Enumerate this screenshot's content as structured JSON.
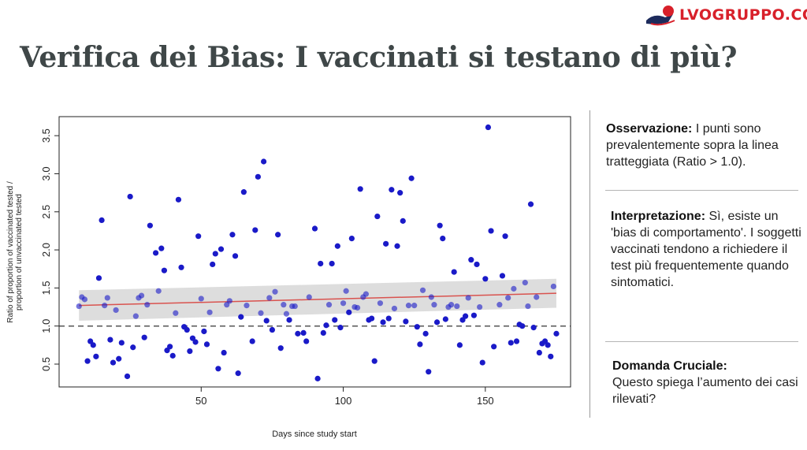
{
  "brand": {
    "logo_text": "LVOGRUPPO.COM",
    "logo_color": "#d8202a"
  },
  "slide": {
    "title": "Verifica dei Bias: I vaccinati si testano di più?"
  },
  "notes": [
    {
      "heading": "Osservazione:",
      "text": " I punti sono prevalentemente sopra la linea tratteggiata (Ratio > 1.0)."
    },
    {
      "heading": "Interpretazione:",
      "text": " Sì, esiste un 'bias di comportamento'. I soggetti vaccinati tendono a richiedere il test più frequentemente quando sintomatici."
    },
    {
      "heading": "Domanda Cruciale:",
      "text": " Questo spiega l’aumento dei casi rilevati?"
    }
  ],
  "chart_data": {
    "type": "scatter",
    "xlabel": "Days since study start",
    "ylabel_lines": [
      "Ratio of proportion of vaccinated tested /",
      "proportion of unvaccinated tested"
    ],
    "xlim": [
      0,
      180
    ],
    "ylim": [
      0.2,
      3.75
    ],
    "xticks": [
      "50",
      "100",
      "150"
    ],
    "yticks": [
      "0.5",
      "1.0",
      "1.5",
      "2.0",
      "2.5",
      "3.0",
      "3.5"
    ],
    "grid": false,
    "point_color": "#1a1ac8",
    "trend": {
      "x": [
        7,
        175
      ],
      "y": [
        1.27,
        1.43
      ],
      "band_upper": [
        1.47,
        1.62
      ],
      "band_lower": [
        1.07,
        1.24
      ],
      "color": "#d9534f",
      "band_color": "#d9d9d9"
    },
    "reference_line": {
      "y": 1.0,
      "style": "dashed",
      "color": "#555555"
    },
    "points": [
      [
        7,
        1.26
      ],
      [
        8,
        1.38
      ],
      [
        9,
        1.35
      ],
      [
        10,
        0.54
      ],
      [
        11,
        0.8
      ],
      [
        12,
        0.75
      ],
      [
        13,
        0.6
      ],
      [
        14,
        1.63
      ],
      [
        15,
        2.39
      ],
      [
        16,
        1.27
      ],
      [
        17,
        1.37
      ],
      [
        18,
        0.82
      ],
      [
        19,
        0.52
      ],
      [
        20,
        1.21
      ],
      [
        21,
        0.57
      ],
      [
        22,
        0.78
      ],
      [
        24,
        0.34
      ],
      [
        25,
        2.7
      ],
      [
        26,
        0.72
      ],
      [
        27,
        1.13
      ],
      [
        28,
        1.37
      ],
      [
        29,
        1.4
      ],
      [
        30,
        0.85
      ],
      [
        31,
        1.28
      ],
      [
        32,
        2.32
      ],
      [
        34,
        1.96
      ],
      [
        35,
        1.46
      ],
      [
        36,
        2.02
      ],
      [
        37,
        1.73
      ],
      [
        38,
        0.68
      ],
      [
        39,
        0.73
      ],
      [
        40,
        0.61
      ],
      [
        41,
        1.17
      ],
      [
        42,
        2.66
      ],
      [
        43,
        1.77
      ],
      [
        44,
        0.99
      ],
      [
        45,
        0.95
      ],
      [
        46,
        0.67
      ],
      [
        47,
        0.84
      ],
      [
        48,
        0.79
      ],
      [
        49,
        2.18
      ],
      [
        50,
        1.36
      ],
      [
        51,
        0.93
      ],
      [
        52,
        0.76
      ],
      [
        53,
        1.18
      ],
      [
        54,
        1.81
      ],
      [
        55,
        1.95
      ],
      [
        56,
        0.44
      ],
      [
        57,
        2.01
      ],
      [
        58,
        0.65
      ],
      [
        59,
        1.28
      ],
      [
        60,
        1.33
      ],
      [
        61,
        2.2
      ],
      [
        62,
        1.92
      ],
      [
        63,
        0.38
      ],
      [
        64,
        1.12
      ],
      [
        65,
        2.76
      ],
      [
        66,
        1.27
      ],
      [
        68,
        0.8
      ],
      [
        69,
        2.26
      ],
      [
        70,
        2.96
      ],
      [
        71,
        1.17
      ],
      [
        72,
        3.16
      ],
      [
        73,
        1.07
      ],
      [
        74,
        1.37
      ],
      [
        75,
        0.95
      ],
      [
        76,
        1.45
      ],
      [
        77,
        2.2
      ],
      [
        78,
        0.71
      ],
      [
        79,
        1.28
      ],
      [
        80,
        1.16
      ],
      [
        81,
        1.08
      ],
      [
        82,
        1.26
      ],
      [
        83,
        1.26
      ],
      [
        84,
        0.9
      ],
      [
        86,
        0.91
      ],
      [
        87,
        0.8
      ],
      [
        88,
        1.38
      ],
      [
        90,
        2.28
      ],
      [
        91,
        0.31
      ],
      [
        92,
        1.82
      ],
      [
        93,
        0.91
      ],
      [
        94,
        1.01
      ],
      [
        95,
        1.28
      ],
      [
        96,
        1.82
      ],
      [
        97,
        1.08
      ],
      [
        98,
        2.05
      ],
      [
        99,
        0.98
      ],
      [
        100,
        1.3
      ],
      [
        101,
        1.46
      ],
      [
        102,
        1.18
      ],
      [
        103,
        2.15
      ],
      [
        104,
        1.25
      ],
      [
        105,
        1.24
      ],
      [
        106,
        2.8
      ],
      [
        107,
        1.38
      ],
      [
        108,
        1.42
      ],
      [
        109,
        1.08
      ],
      [
        110,
        1.1
      ],
      [
        111,
        0.54
      ],
      [
        112,
        2.44
      ],
      [
        113,
        1.3
      ],
      [
        114,
        1.05
      ],
      [
        115,
        2.08
      ],
      [
        116,
        1.1
      ],
      [
        117,
        2.79
      ],
      [
        118,
        1.23
      ],
      [
        119,
        2.05
      ],
      [
        120,
        2.75
      ],
      [
        121,
        2.38
      ],
      [
        122,
        1.06
      ],
      [
        123,
        1.27
      ],
      [
        124,
        2.94
      ],
      [
        125,
        1.27
      ],
      [
        126,
        0.99
      ],
      [
        127,
        0.76
      ],
      [
        128,
        1.47
      ],
      [
        129,
        0.9
      ],
      [
        130,
        0.4
      ],
      [
        131,
        1.38
      ],
      [
        132,
        1.28
      ],
      [
        133,
        1.05
      ],
      [
        134,
        2.32
      ],
      [
        135,
        2.15
      ],
      [
        136,
        1.09
      ],
      [
        137,
        1.25
      ],
      [
        138,
        1.28
      ],
      [
        139,
        1.71
      ],
      [
        140,
        1.26
      ],
      [
        141,
        0.75
      ],
      [
        142,
        1.08
      ],
      [
        143,
        1.13
      ],
      [
        144,
        1.37
      ],
      [
        145,
        1.87
      ],
      [
        146,
        1.14
      ],
      [
        147,
        1.81
      ],
      [
        148,
        1.25
      ],
      [
        149,
        0.52
      ],
      [
        150,
        1.62
      ],
      [
        151,
        3.61
      ],
      [
        152,
        2.25
      ],
      [
        153,
        0.73
      ],
      [
        155,
        1.28
      ],
      [
        156,
        1.66
      ],
      [
        157,
        2.18
      ],
      [
        158,
        1.37
      ],
      [
        159,
        0.78
      ],
      [
        160,
        1.49
      ],
      [
        161,
        0.8
      ],
      [
        162,
        1.02
      ],
      [
        163,
        1.0
      ],
      [
        164,
        1.57
      ],
      [
        165,
        1.26
      ],
      [
        166,
        2.6
      ],
      [
        167,
        0.98
      ],
      [
        168,
        1.38
      ],
      [
        169,
        0.65
      ],
      [
        170,
        0.77
      ],
      [
        171,
        0.8
      ],
      [
        172,
        0.75
      ],
      [
        173,
        0.6
      ],
      [
        174,
        1.52
      ],
      [
        175,
        0.9
      ]
    ]
  }
}
